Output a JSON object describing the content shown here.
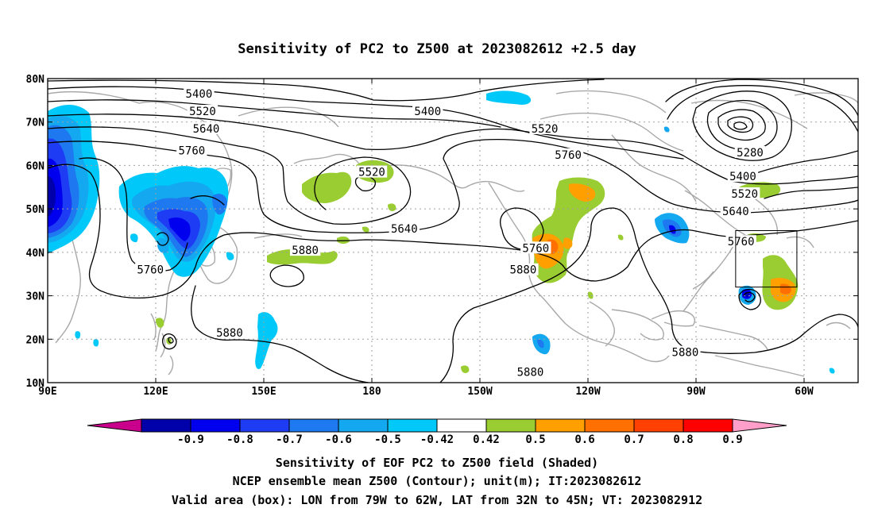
{
  "title": "Sensitivity of PC2 to Z500 at 2023082612 +2.5 day",
  "map": {
    "lon_range": [
      90,
      315
    ],
    "lat_range": [
      10,
      80
    ],
    "x_ticks": [
      {
        "lon": 90,
        "label": "90E"
      },
      {
        "lon": 120,
        "label": "120E"
      },
      {
        "lon": 150,
        "label": "150E"
      },
      {
        "lon": 180,
        "label": "180"
      },
      {
        "lon": 210,
        "label": "150W"
      },
      {
        "lon": 240,
        "label": "120W"
      },
      {
        "lon": 270,
        "label": "90W"
      },
      {
        "lon": 300,
        "label": "60W"
      }
    ],
    "y_ticks": [
      {
        "lat": 80,
        "label": "80N"
      },
      {
        "lat": 70,
        "label": "70N"
      },
      {
        "lat": 60,
        "label": "60N"
      },
      {
        "lat": 50,
        "label": "50N"
      },
      {
        "lat": 40,
        "label": "40N"
      },
      {
        "lat": 30,
        "label": "30N"
      },
      {
        "lat": 20,
        "label": "20N"
      },
      {
        "lat": 10,
        "label": "10N"
      }
    ],
    "valid_box": {
      "lon_min": 281,
      "lon_max": 298,
      "lat_min": 32,
      "lat_max": 45
    },
    "contour_labels": [
      {
        "text": "5400",
        "lon": 132,
        "lat": 76.5
      },
      {
        "text": "5520",
        "lon": 133,
        "lat": 72.5
      },
      {
        "text": "5640",
        "lon": 134,
        "lat": 68.5
      },
      {
        "text": "5760",
        "lon": 130,
        "lat": 63.5
      },
      {
        "text": "5400",
        "lon": 195.5,
        "lat": 72.5
      },
      {
        "text": "5520",
        "lon": 180,
        "lat": 58.5
      },
      {
        "text": "5520",
        "lon": 228,
        "lat": 68.5
      },
      {
        "text": "5760",
        "lon": 234.5,
        "lat": 62.5
      },
      {
        "text": "5640",
        "lon": 189,
        "lat": 45.5
      },
      {
        "text": "5880",
        "lon": 161.5,
        "lat": 40.5
      },
      {
        "text": "5760",
        "lon": 118.5,
        "lat": 36
      },
      {
        "text": "5880",
        "lon": 140.5,
        "lat": 21.5
      },
      {
        "text": "5760",
        "lon": 225.5,
        "lat": 41
      },
      {
        "text": "5880",
        "lon": 222,
        "lat": 36
      },
      {
        "text": "5880",
        "lon": 224,
        "lat": 12.5
      },
      {
        "text": "5880",
        "lon": 267,
        "lat": 17
      },
      {
        "text": "5280",
        "lon": 285,
        "lat": 63
      },
      {
        "text": "5400",
        "lon": 283,
        "lat": 57.5
      },
      {
        "text": "5520",
        "lon": 283.5,
        "lat": 53.5
      },
      {
        "text": "5640",
        "lon": 281,
        "lat": 49.5
      },
      {
        "text": "5760",
        "lon": 282.5,
        "lat": 42.5
      }
    ]
  },
  "colorbar": {
    "labels": [
      "-0.9",
      "-0.8",
      "-0.7",
      "-0.6",
      "-0.5",
      "-0.42",
      "0.42",
      "0.5",
      "0.6",
      "0.7",
      "0.8",
      "0.9"
    ],
    "colors": {
      "low_end": "#c8008c",
      "bins": [
        "#0000aa",
        "#0000ee",
        "#1f3cf5",
        "#1e78f0",
        "#14a8f0",
        "#00c8f8",
        "#ffffff",
        "#9acd32",
        "#ffa000",
        "#ff7000",
        "#ff4000",
        "#ff0000"
      ],
      "high_end": "#ff9ec8"
    }
  },
  "footer": {
    "line1": "Sensitivity of EOF PC2 to Z500 field (Shaded)",
    "line2": "NCEP ensemble mean Z500 (Contour); unit(m); IT:2023082612",
    "line3": "Valid area (box): LON from 79W to 62W, LAT from 32N to 45N; VT: 2023082912"
  }
}
